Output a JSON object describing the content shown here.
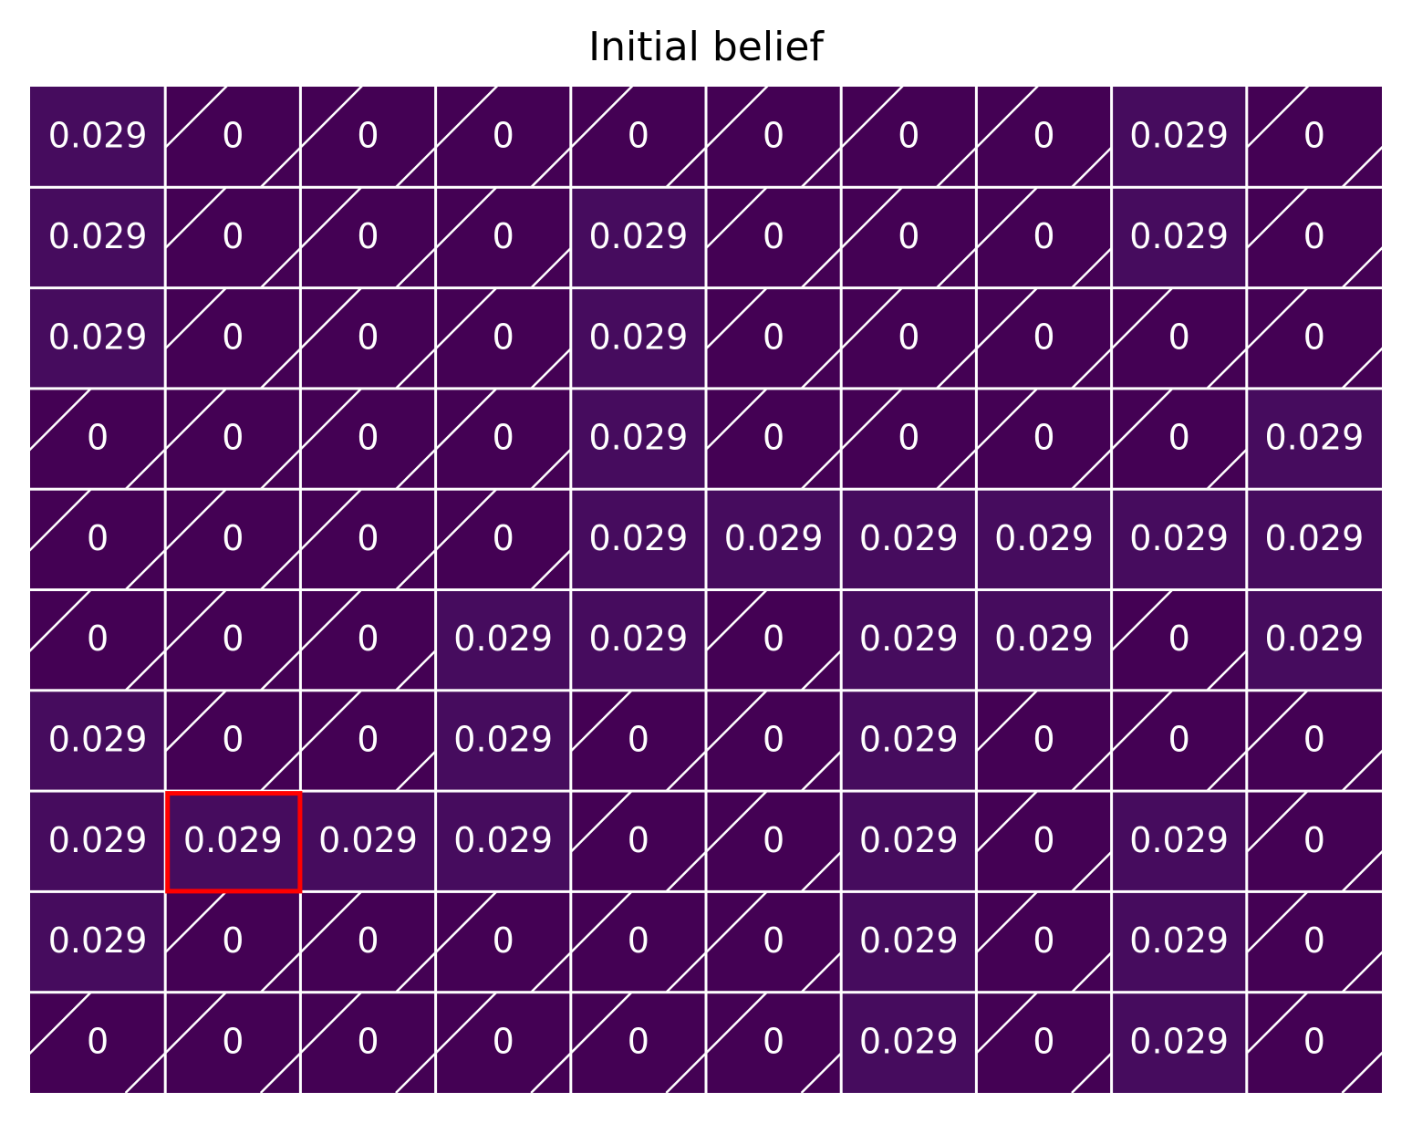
{
  "chart_data": {
    "type": "heatmap",
    "title": "Initial belief",
    "rows": 10,
    "cols": 10,
    "values": [
      [
        "0.029",
        "0",
        "0",
        "0",
        "0",
        "0",
        "0",
        "0",
        "0.029",
        "0"
      ],
      [
        "0.029",
        "0",
        "0",
        "0",
        "0.029",
        "0",
        "0",
        "0",
        "0.029",
        "0"
      ],
      [
        "0.029",
        "0",
        "0",
        "0",
        "0.029",
        "0",
        "0",
        "0",
        "0",
        "0"
      ],
      [
        "0",
        "0",
        "0",
        "0",
        "0.029",
        "0",
        "0",
        "0",
        "0",
        "0.029"
      ],
      [
        "0",
        "0",
        "0",
        "0",
        "0.029",
        "0.029",
        "0.029",
        "0.029",
        "0.029",
        "0.029"
      ],
      [
        "0",
        "0",
        "0",
        "0.029",
        "0.029",
        "0",
        "0.029",
        "0.029",
        "0",
        "0.029"
      ],
      [
        "0.029",
        "0",
        "0",
        "0.029",
        "0",
        "0",
        "0.029",
        "0",
        "0",
        "0"
      ],
      [
        "0.029",
        "0.029",
        "0.029",
        "0.029",
        "0",
        "0",
        "0.029",
        "0",
        "0.029",
        "0"
      ],
      [
        "0.029",
        "0",
        "0",
        "0",
        "0",
        "0",
        "0.029",
        "0",
        "0.029",
        "0"
      ],
      [
        "0",
        "0",
        "0",
        "0",
        "0",
        "0",
        "0.029",
        "0",
        "0.029",
        "0"
      ]
    ],
    "highlighted_cell": {
      "row": 7,
      "col": 1
    },
    "hatched_cells": "zero-valued",
    "colormap": "viridis",
    "colors": {
      "zero": "#440154",
      "nonzero": "#460c5e",
      "grid": "#ffffff",
      "hatch": "#ffffff",
      "highlight": "#ff0000",
      "label": "#ffffff"
    },
    "grid": true,
    "axes_visible": false
  }
}
